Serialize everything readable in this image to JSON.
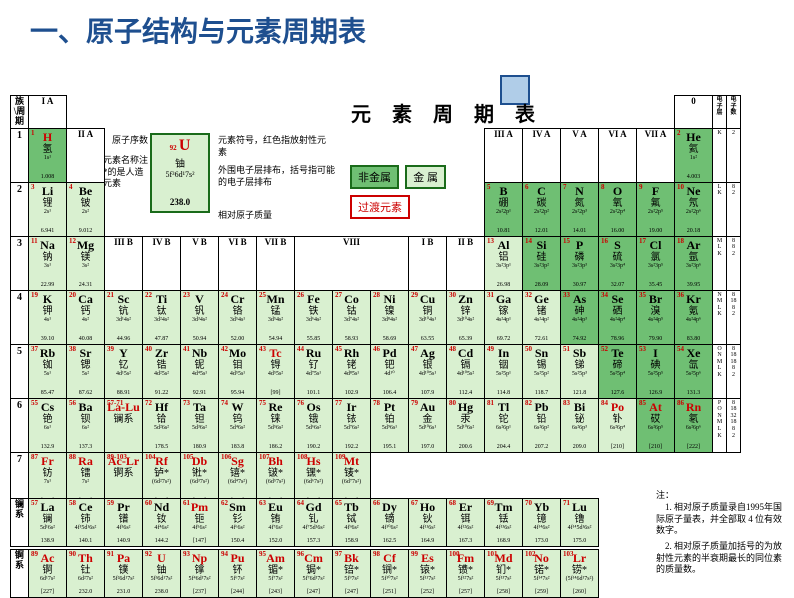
{
  "title": "一、原子结构与元素周期表",
  "title_color": "#1e4f8f",
  "subtitle": "元 素 周 期 表",
  "legend": {
    "atomic_num_label": "原子序数",
    "name_label": "元素名称注*的是人造元素",
    "symbol_label": "元素符号，红色指放射性元素",
    "config_label": "外围电子层排布，括号指可能的电子层排布",
    "mass_label": "相对原子质量",
    "example": {
      "num": "92",
      "sym": "U",
      "name": "铀",
      "conf": "5f³6d¹7s²",
      "mass": "238.0"
    },
    "nonmetal": "非金属",
    "metal": "金 属",
    "transition": "过渡元素",
    "nonmetal_bg": "#6fbf73",
    "metal_bg": "#d9f0d0",
    "trans_border": "#c00000"
  },
  "corner_labels": {
    "period": "周期",
    "group": "族",
    "zero": "0",
    "shell": "电子层",
    "shell_count": "电子数"
  },
  "group_headers_left": [
    "I A"
  ],
  "group_headers_2": [
    "II A"
  ],
  "group_headers_mid": [
    "III B",
    "IV B",
    "V B",
    "VI B",
    "VII B",
    "VIII",
    "",
    "",
    "I B",
    "II B"
  ],
  "group_headers_right": [
    "III A",
    "IV A",
    "V A",
    "VI A",
    "VII A"
  ],
  "periods": [
    "1",
    "2",
    "3",
    "4",
    "5",
    "6",
    "7"
  ],
  "series": {
    "lan": "镧系",
    "act": "锕系"
  },
  "elements": {
    "p1": [
      {
        "n": "1",
        "s": "H",
        "nm": "氢",
        "c": "1s¹",
        "m": "1.008",
        "cl": "nonmetal",
        "red": true
      },
      {
        "n": "2",
        "s": "He",
        "nm": "氦",
        "c": "1s²",
        "m": "4.003",
        "cl": "nonmetal"
      }
    ],
    "p2": [
      {
        "n": "3",
        "s": "Li",
        "nm": "锂",
        "c": "2s¹",
        "m": "6.941",
        "cl": "metal"
      },
      {
        "n": "4",
        "s": "Be",
        "nm": "铍",
        "c": "2s²",
        "m": "9.012",
        "cl": "metal"
      },
      {
        "n": "5",
        "s": "B",
        "nm": "硼",
        "c": "2s²2p¹",
        "m": "10.81",
        "cl": "nonmetal"
      },
      {
        "n": "6",
        "s": "C",
        "nm": "碳",
        "c": "2s²2p²",
        "m": "12.01",
        "cl": "nonmetal"
      },
      {
        "n": "7",
        "s": "N",
        "nm": "氮",
        "c": "2s²2p³",
        "m": "14.01",
        "cl": "nonmetal"
      },
      {
        "n": "8",
        "s": "O",
        "nm": "氧",
        "c": "2s²2p⁴",
        "m": "16.00",
        "cl": "nonmetal"
      },
      {
        "n": "9",
        "s": "F",
        "nm": "氟",
        "c": "2s²2p⁵",
        "m": "19.00",
        "cl": "nonmetal"
      },
      {
        "n": "10",
        "s": "Ne",
        "nm": "氖",
        "c": "2s²2p⁶",
        "m": "20.18",
        "cl": "nonmetal"
      }
    ],
    "p3": [
      {
        "n": "11",
        "s": "Na",
        "nm": "钠",
        "c": "3s¹",
        "m": "22.99",
        "cl": "metal"
      },
      {
        "n": "12",
        "s": "Mg",
        "nm": "镁",
        "c": "3s²",
        "m": "24.31",
        "cl": "metal"
      },
      {
        "n": "13",
        "s": "Al",
        "nm": "铝",
        "c": "3s²3p¹",
        "m": "26.98",
        "cl": "metal"
      },
      {
        "n": "14",
        "s": "Si",
        "nm": "硅",
        "c": "3s²3p²",
        "m": "28.09",
        "cl": "nonmetal"
      },
      {
        "n": "15",
        "s": "P",
        "nm": "磷",
        "c": "3s²3p³",
        "m": "30.97",
        "cl": "nonmetal"
      },
      {
        "n": "16",
        "s": "S",
        "nm": "硫",
        "c": "3s²3p⁴",
        "m": "32.07",
        "cl": "nonmetal"
      },
      {
        "n": "17",
        "s": "Cl",
        "nm": "氯",
        "c": "3s²3p⁵",
        "m": "35.45",
        "cl": "nonmetal"
      },
      {
        "n": "18",
        "s": "Ar",
        "nm": "氩",
        "c": "3s²3p⁶",
        "m": "39.95",
        "cl": "nonmetal"
      }
    ],
    "p4": [
      {
        "n": "19",
        "s": "K",
        "nm": "钾",
        "c": "4s¹",
        "m": "39.10",
        "cl": "metal"
      },
      {
        "n": "20",
        "s": "Ca",
        "nm": "钙",
        "c": "4s²",
        "m": "40.08",
        "cl": "metal"
      },
      {
        "n": "21",
        "s": "Sc",
        "nm": "钪",
        "c": "3d¹4s²",
        "m": "44.96",
        "cl": "trans"
      },
      {
        "n": "22",
        "s": "Ti",
        "nm": "钛",
        "c": "3d²4s²",
        "m": "47.87",
        "cl": "trans"
      },
      {
        "n": "23",
        "s": "V",
        "nm": "钒",
        "c": "3d³4s²",
        "m": "50.94",
        "cl": "trans"
      },
      {
        "n": "24",
        "s": "Cr",
        "nm": "铬",
        "c": "3d⁵4s¹",
        "m": "52.00",
        "cl": "trans"
      },
      {
        "n": "25",
        "s": "Mn",
        "nm": "锰",
        "c": "3d⁵4s²",
        "m": "54.94",
        "cl": "trans"
      },
      {
        "n": "26",
        "s": "Fe",
        "nm": "铁",
        "c": "3d⁶4s²",
        "m": "55.85",
        "cl": "trans"
      },
      {
        "n": "27",
        "s": "Co",
        "nm": "钴",
        "c": "3d⁷4s²",
        "m": "58.93",
        "cl": "trans"
      },
      {
        "n": "28",
        "s": "Ni",
        "nm": "镍",
        "c": "3d⁸4s²",
        "m": "58.69",
        "cl": "trans"
      },
      {
        "n": "29",
        "s": "Cu",
        "nm": "铜",
        "c": "3d¹⁰4s¹",
        "m": "63.55",
        "cl": "trans"
      },
      {
        "n": "30",
        "s": "Zn",
        "nm": "锌",
        "c": "3d¹⁰4s²",
        "m": "65.39",
        "cl": "trans"
      },
      {
        "n": "31",
        "s": "Ga",
        "nm": "镓",
        "c": "4s²4p¹",
        "m": "69.72",
        "cl": "metal"
      },
      {
        "n": "32",
        "s": "Ge",
        "nm": "锗",
        "c": "4s²4p²",
        "m": "72.61",
        "cl": "metal"
      },
      {
        "n": "33",
        "s": "As",
        "nm": "砷",
        "c": "4s²4p³",
        "m": "74.92",
        "cl": "nonmetal"
      },
      {
        "n": "34",
        "s": "Se",
        "nm": "硒",
        "c": "4s²4p⁴",
        "m": "78.96",
        "cl": "nonmetal"
      },
      {
        "n": "35",
        "s": "Br",
        "nm": "溴",
        "c": "4s²4p⁵",
        "m": "79.90",
        "cl": "nonmetal"
      },
      {
        "n": "36",
        "s": "Kr",
        "nm": "氪",
        "c": "4s²4p⁶",
        "m": "83.80",
        "cl": "nonmetal"
      }
    ],
    "p5": [
      {
        "n": "37",
        "s": "Rb",
        "nm": "铷",
        "c": "5s¹",
        "m": "85.47",
        "cl": "metal"
      },
      {
        "n": "38",
        "s": "Sr",
        "nm": "锶",
        "c": "5s²",
        "m": "87.62",
        "cl": "metal"
      },
      {
        "n": "39",
        "s": "Y",
        "nm": "钇",
        "c": "4d¹5s²",
        "m": "88.91",
        "cl": "trans"
      },
      {
        "n": "40",
        "s": "Zr",
        "nm": "锆",
        "c": "4d²5s²",
        "m": "91.22",
        "cl": "trans"
      },
      {
        "n": "41",
        "s": "Nb",
        "nm": "铌",
        "c": "4d⁴5s¹",
        "m": "92.91",
        "cl": "trans"
      },
      {
        "n": "42",
        "s": "Mo",
        "nm": "钼",
        "c": "4d⁵5s¹",
        "m": "95.94",
        "cl": "trans"
      },
      {
        "n": "43",
        "s": "Tc",
        "nm": "锝",
        "c": "4d⁵5s²",
        "m": "[99]",
        "cl": "trans",
        "red": true
      },
      {
        "n": "44",
        "s": "Ru",
        "nm": "钌",
        "c": "4d⁷5s¹",
        "m": "101.1",
        "cl": "trans"
      },
      {
        "n": "45",
        "s": "Rh",
        "nm": "铑",
        "c": "4d⁸5s¹",
        "m": "102.9",
        "cl": "trans"
      },
      {
        "n": "46",
        "s": "Pd",
        "nm": "钯",
        "c": "4d¹⁰",
        "m": "106.4",
        "cl": "trans"
      },
      {
        "n": "47",
        "s": "Ag",
        "nm": "银",
        "c": "4d¹⁰5s¹",
        "m": "107.9",
        "cl": "trans"
      },
      {
        "n": "48",
        "s": "Cd",
        "nm": "镉",
        "c": "4d¹⁰5s²",
        "m": "112.4",
        "cl": "trans"
      },
      {
        "n": "49",
        "s": "In",
        "nm": "铟",
        "c": "5s²5p¹",
        "m": "114.8",
        "cl": "metal"
      },
      {
        "n": "50",
        "s": "Sn",
        "nm": "锡",
        "c": "5s²5p²",
        "m": "118.7",
        "cl": "metal"
      },
      {
        "n": "51",
        "s": "Sb",
        "nm": "锑",
        "c": "5s²5p³",
        "m": "121.8",
        "cl": "metal"
      },
      {
        "n": "52",
        "s": "Te",
        "nm": "碲",
        "c": "5s²5p⁴",
        "m": "127.6",
        "cl": "nonmetal"
      },
      {
        "n": "53",
        "s": "I",
        "nm": "碘",
        "c": "5s²5p⁵",
        "m": "126.9",
        "cl": "nonmetal"
      },
      {
        "n": "54",
        "s": "Xe",
        "nm": "氙",
        "c": "5s²5p⁶",
        "m": "131.3",
        "cl": "nonmetal"
      }
    ],
    "p6": [
      {
        "n": "55",
        "s": "Cs",
        "nm": "铯",
        "c": "6s¹",
        "m": "132.9",
        "cl": "metal"
      },
      {
        "n": "56",
        "s": "Ba",
        "nm": "钡",
        "c": "6s²",
        "m": "137.3",
        "cl": "metal"
      },
      {
        "n": "57-71",
        "s": "La-Lu",
        "nm": "镧系",
        "c": "",
        "m": "",
        "cl": "trans",
        "red": true
      },
      {
        "n": "72",
        "s": "Hf",
        "nm": "铪",
        "c": "5d²6s²",
        "m": "178.5",
        "cl": "trans"
      },
      {
        "n": "73",
        "s": "Ta",
        "nm": "钽",
        "c": "5d³6s²",
        "m": "180.9",
        "cl": "trans"
      },
      {
        "n": "74",
        "s": "W",
        "nm": "钨",
        "c": "5d⁴6s²",
        "m": "183.8",
        "cl": "trans"
      },
      {
        "n": "75",
        "s": "Re",
        "nm": "铼",
        "c": "5d⁵6s²",
        "m": "186.2",
        "cl": "trans"
      },
      {
        "n": "76",
        "s": "Os",
        "nm": "锇",
        "c": "5d⁶6s²",
        "m": "190.2",
        "cl": "trans"
      },
      {
        "n": "77",
        "s": "Ir",
        "nm": "铱",
        "c": "5d⁷6s²",
        "m": "192.2",
        "cl": "trans"
      },
      {
        "n": "78",
        "s": "Pt",
        "nm": "铂",
        "c": "5d⁹6s¹",
        "m": "195.1",
        "cl": "trans"
      },
      {
        "n": "79",
        "s": "Au",
        "nm": "金",
        "c": "5d¹⁰6s¹",
        "m": "197.0",
        "cl": "trans"
      },
      {
        "n": "80",
        "s": "Hg",
        "nm": "汞",
        "c": "5d¹⁰6s²",
        "m": "200.6",
        "cl": "trans"
      },
      {
        "n": "81",
        "s": "Tl",
        "nm": "铊",
        "c": "6s²6p¹",
        "m": "204.4",
        "cl": "metal"
      },
      {
        "n": "82",
        "s": "Pb",
        "nm": "铅",
        "c": "6s²6p²",
        "m": "207.2",
        "cl": "metal"
      },
      {
        "n": "83",
        "s": "Bi",
        "nm": "铋",
        "c": "6s²6p³",
        "m": "209.0",
        "cl": "metal"
      },
      {
        "n": "84",
        "s": "Po",
        "nm": "钋",
        "c": "6s²6p⁴",
        "m": "[210]",
        "cl": "metal",
        "red": true
      },
      {
        "n": "85",
        "s": "At",
        "nm": "砹",
        "c": "6s²6p⁵",
        "m": "[210]",
        "cl": "nonmetal",
        "red": true
      },
      {
        "n": "86",
        "s": "Rn",
        "nm": "氡",
        "c": "6s²6p⁶",
        "m": "[222]",
        "cl": "nonmetal",
        "red": true
      }
    ],
    "p7": [
      {
        "n": "87",
        "s": "Fr",
        "nm": "钫",
        "c": "7s¹",
        "m": "[223]",
        "cl": "metal",
        "red": true
      },
      {
        "n": "88",
        "s": "Ra",
        "nm": "镭",
        "c": "7s²",
        "m": "[226]",
        "cl": "metal",
        "red": true
      },
      {
        "n": "89-103",
        "s": "Ac-Lr",
        "nm": "锕系",
        "c": "",
        "m": "",
        "cl": "trans",
        "red": true
      },
      {
        "n": "104",
        "s": "Rf",
        "nm": "𬬻*",
        "c": "(6d²7s²)",
        "m": "[261]",
        "cl": "trans",
        "red": true
      },
      {
        "n": "105",
        "s": "Db",
        "nm": "𬭊*",
        "c": "(6d³7s²)",
        "m": "[262]",
        "cl": "trans",
        "red": true
      },
      {
        "n": "106",
        "s": "Sg",
        "nm": "𬭳*",
        "c": "(6d⁴7s²)",
        "m": "[263]",
        "cl": "trans",
        "red": true
      },
      {
        "n": "107",
        "s": "Bh",
        "nm": "𬭛*",
        "c": "(6d⁵7s²)",
        "m": "[264]",
        "cl": "trans",
        "red": true
      },
      {
        "n": "108",
        "s": "Hs",
        "nm": "𬭶*",
        "c": "(6d⁶7s²)",
        "m": "[265]",
        "cl": "trans",
        "red": true
      },
      {
        "n": "109",
        "s": "Mt",
        "nm": "鿏*",
        "c": "(6d⁷7s²)",
        "m": "[266]",
        "cl": "trans",
        "red": true
      }
    ],
    "lan": [
      {
        "n": "57",
        "s": "La",
        "nm": "镧",
        "c": "5d¹6s²",
        "m": "138.9"
      },
      {
        "n": "58",
        "s": "Ce",
        "nm": "铈",
        "c": "4f¹5d¹6s²",
        "m": "140.1"
      },
      {
        "n": "59",
        "s": "Pr",
        "nm": "镨",
        "c": "4f³6s²",
        "m": "140.9"
      },
      {
        "n": "60",
        "s": "Nd",
        "nm": "钕",
        "c": "4f⁴6s²",
        "m": "144.2"
      },
      {
        "n": "61",
        "s": "Pm",
        "nm": "钷",
        "c": "4f⁵6s²",
        "m": "[147]",
        "red": true
      },
      {
        "n": "62",
        "s": "Sm",
        "nm": "钐",
        "c": "4f⁶6s²",
        "m": "150.4"
      },
      {
        "n": "63",
        "s": "Eu",
        "nm": "铕",
        "c": "4f⁷6s²",
        "m": "152.0"
      },
      {
        "n": "64",
        "s": "Gd",
        "nm": "钆",
        "c": "4f⁷5d¹6s²",
        "m": "157.3"
      },
      {
        "n": "65",
        "s": "Tb",
        "nm": "铽",
        "c": "4f⁹6s²",
        "m": "158.9"
      },
      {
        "n": "66",
        "s": "Dy",
        "nm": "镝",
        "c": "4f¹⁰6s²",
        "m": "162.5"
      },
      {
        "n": "67",
        "s": "Ho",
        "nm": "钬",
        "c": "4f¹¹6s²",
        "m": "164.9"
      },
      {
        "n": "68",
        "s": "Er",
        "nm": "铒",
        "c": "4f¹²6s²",
        "m": "167.3"
      },
      {
        "n": "69",
        "s": "Tm",
        "nm": "铥",
        "c": "4f¹³6s²",
        "m": "168.9"
      },
      {
        "n": "70",
        "s": "Yb",
        "nm": "镱",
        "c": "4f¹⁴6s²",
        "m": "173.0"
      },
      {
        "n": "71",
        "s": "Lu",
        "nm": "镥",
        "c": "4f¹⁴5d¹6s²",
        "m": "175.0"
      }
    ],
    "act": [
      {
        "n": "89",
        "s": "Ac",
        "nm": "锕",
        "c": "6d¹7s²",
        "m": "[227]",
        "red": true
      },
      {
        "n": "90",
        "s": "Th",
        "nm": "钍",
        "c": "6d²7s²",
        "m": "232.0",
        "red": true
      },
      {
        "n": "91",
        "s": "Pa",
        "nm": "镤",
        "c": "5f²6d¹7s²",
        "m": "231.0",
        "red": true
      },
      {
        "n": "92",
        "s": "U",
        "nm": "铀",
        "c": "5f³6d¹7s²",
        "m": "238.0",
        "red": true
      },
      {
        "n": "93",
        "s": "Np",
        "nm": "镎",
        "c": "5f⁴6d¹7s²",
        "m": "[237]",
        "red": true
      },
      {
        "n": "94",
        "s": "Pu",
        "nm": "钚",
        "c": "5f⁶7s²",
        "m": "[244]",
        "red": true
      },
      {
        "n": "95",
        "s": "Am",
        "nm": "镅*",
        "c": "5f⁷7s²",
        "m": "[243]",
        "red": true
      },
      {
        "n": "96",
        "s": "Cm",
        "nm": "锔*",
        "c": "5f⁷6d¹7s²",
        "m": "[247]",
        "red": true
      },
      {
        "n": "97",
        "s": "Bk",
        "nm": "锫*",
        "c": "5f⁹7s²",
        "m": "[247]",
        "red": true
      },
      {
        "n": "98",
        "s": "Cf",
        "nm": "锎*",
        "c": "5f¹⁰7s²",
        "m": "[251]",
        "red": true
      },
      {
        "n": "99",
        "s": "Es",
        "nm": "锿*",
        "c": "5f¹¹7s²",
        "m": "[252]",
        "red": true
      },
      {
        "n": "100",
        "s": "Fm",
        "nm": "镄*",
        "c": "5f¹²7s²",
        "m": "[257]",
        "red": true
      },
      {
        "n": "101",
        "s": "Md",
        "nm": "钔*",
        "c": "5f¹³7s²",
        "m": "[258]",
        "red": true
      },
      {
        "n": "102",
        "s": "No",
        "nm": "锘*",
        "c": "5f¹⁴7s²",
        "m": "[259]",
        "red": true
      },
      {
        "n": "103",
        "s": "Lr",
        "nm": "铹*",
        "c": "(5f¹⁴6d¹7s²)",
        "m": "[260]",
        "red": true
      }
    ]
  },
  "shells": {
    "p1": {
      "l": "K",
      "n": "2"
    },
    "p2": {
      "l": "L\nK",
      "n": "8\n2"
    },
    "p3": {
      "l": "M\nL\nK",
      "n": "8\n8\n2"
    },
    "p4": {
      "l": "N\nM\nL\nK",
      "n": "8\n18\n8\n2"
    },
    "p5": {
      "l": "O\nN\nM\nL\nK",
      "n": "8\n18\n18\n8\n2"
    },
    "p6": {
      "l": "P\nO\nN\nM\nL\nK",
      "n": "8\n18\n32\n18\n8\n2"
    }
  },
  "notes": {
    "header": "注：",
    "n1": "1. 相对原子质量录自1995年国际原子量表，并全部取 4 位有效数字。",
    "n2": "2. 相对原子质量加括号的为放射性元素的半衰期最长的同位素的质量数。"
  }
}
